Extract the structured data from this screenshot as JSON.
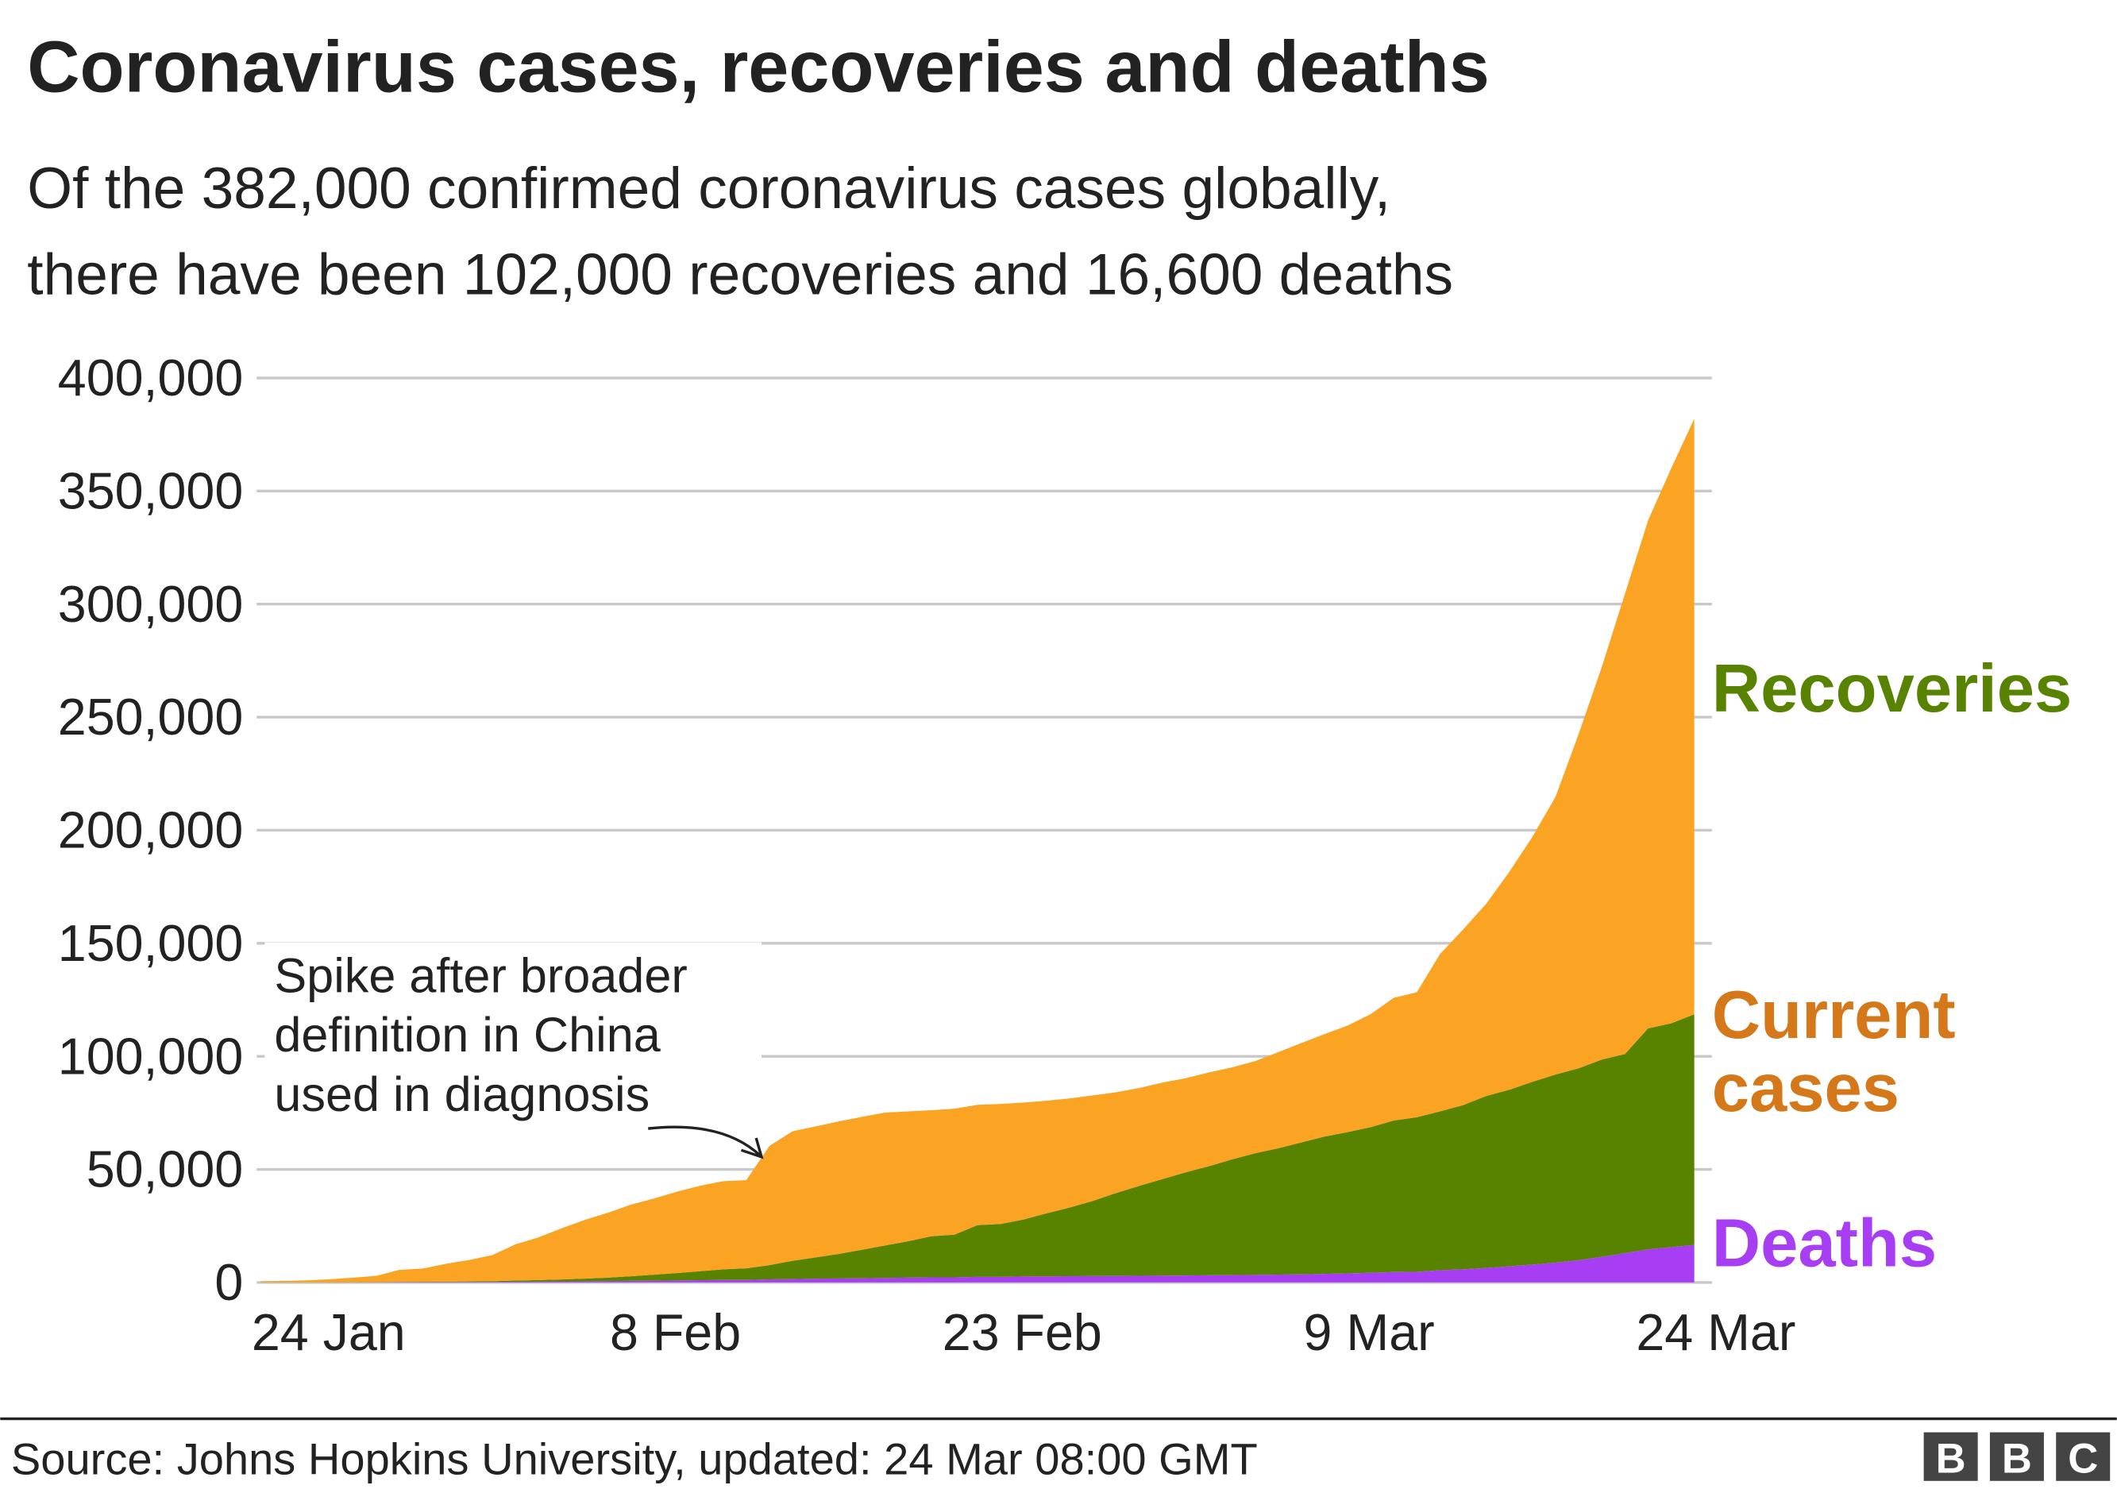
{
  "chart_data": {
    "type": "stacked_area",
    "title": "Coronavirus cases, recoveries and deaths",
    "subtitle": [
      "Of the 382,000 confirmed coronavirus cases globally,",
      "there have been 102,000 recoveries and 16,600 deaths"
    ],
    "x": [
      "22 Jan",
      "23 Jan",
      "24 Jan",
      "25 Jan",
      "26 Jan",
      "27 Jan",
      "28 Jan",
      "29 Jan",
      "30 Jan",
      "31 Jan",
      "1 Feb",
      "2 Feb",
      "3 Feb",
      "4 Feb",
      "5 Feb",
      "6 Feb",
      "7 Feb",
      "8 Feb",
      "9 Feb",
      "10 Feb",
      "11 Feb",
      "12 Feb",
      "13 Feb",
      "14 Feb",
      "15 Feb",
      "16 Feb",
      "17 Feb",
      "18 Feb",
      "19 Feb",
      "20 Feb",
      "21 Feb",
      "22 Feb",
      "23 Feb",
      "24 Feb",
      "25 Feb",
      "26 Feb",
      "27 Feb",
      "28 Feb",
      "29 Feb",
      "1 Mar",
      "2 Mar",
      "3 Mar",
      "4 Mar",
      "5 Mar",
      "6 Mar",
      "7 Mar",
      "8 Mar",
      "9 Mar",
      "10 Mar",
      "11 Mar",
      "12 Mar",
      "13 Mar",
      "14 Mar",
      "15 Mar",
      "16 Mar",
      "17 Mar",
      "18 Mar",
      "19 Mar",
      "20 Mar",
      "21 Mar",
      "22 Mar",
      "23 Mar",
      "24 Mar"
    ],
    "series": [
      {
        "name": "Deaths",
        "color": "#a83ef3",
        "label_color": "#a83ef3",
        "values": [
          17,
          18,
          26,
          42,
          56,
          82,
          131,
          133,
          171,
          213,
          259,
          362,
          426,
          492,
          564,
          634,
          719,
          806,
          906,
          1013,
          1113,
          1118,
          1371,
          1523,
          1666,
          1770,
          1868,
          2007,
          2122,
          2247,
          2251,
          2458,
          2469,
          2629,
          2708,
          2770,
          2814,
          2872,
          2941,
          2996,
          3085,
          3160,
          3254,
          3348,
          3460,
          3558,
          3802,
          3988,
          4262,
          4615,
          4720,
          5404,
          5819,
          6440,
          7126,
          7905,
          8733,
          9867,
          11299,
          12973,
          14651,
          15600,
          16600
        ]
      },
      {
        "name": "Recoveries",
        "color": "#588300",
        "label_color": "#588300",
        "values": [
          28,
          30,
          36,
          39,
          52,
          61,
          107,
          126,
          143,
          222,
          284,
          472,
          623,
          852,
          1124,
          1487,
          2011,
          2616,
          3244,
          3946,
          4683,
          5150,
          6295,
          8058,
          9395,
          10865,
          12583,
          14352,
          16121,
          18177,
          18890,
          22886,
          23394,
          25227,
          27905,
          30384,
          33277,
          36711,
          39782,
          42716,
          45602,
          48228,
          51170,
          53796,
          55865,
          58358,
          60694,
          62494,
          64404,
          67003,
          68324,
          70251,
          72624,
          76034,
          78088,
          80840,
          83207,
          84854,
          87256,
          88000,
          97704,
          99000,
          102000
        ]
      },
      {
        "name": "Current cases",
        "color": "#fba322",
        "label_color": "#d4781a",
        "values": [
          510,
          606,
          879,
          1353,
          2010,
          2784,
          5340,
          5907,
          7920,
          9492,
          11495,
          15953,
          18832,
          22548,
          25947,
          28673,
          31661,
          33698,
          36000,
          37803,
          39006,
          38953,
          52702,
          57304,
          57969,
          58589,
          58807,
          58777,
          57396,
          55773,
          55678,
          53228,
          53095,
          51705,
          49793,
          48234,
          46655,
          44529,
          43288,
          42657,
          41619,
          41452,
          40696,
          40742,
          42476,
          43931,
          45325,
          47108,
          49954,
          54257,
          55308,
          69550,
          77658,
          84980,
          96360,
          108357,
          122881,
          147849,
          173653,
          203534,
          224598,
          245400,
          263400
        ]
      }
    ],
    "ylim": [
      0,
      400000
    ],
    "yticks": [
      0,
      {
        "value": 50000,
        "label": "50,000"
      },
      {
        "value": 100000,
        "label": "100,000"
      },
      {
        "value": 150000,
        "label": "150,000"
      },
      {
        "value": 200000,
        "label": "200,000"
      },
      {
        "value": 250000,
        "label": "250,000"
      },
      {
        "value": 300000,
        "label": "300,000"
      },
      {
        "value": 350000,
        "label": "350,000"
      },
      {
        "value": 400000,
        "label": "400,000"
      }
    ],
    "xticks": [
      "24 Jan",
      "8 Feb",
      "23 Feb",
      "9 Mar",
      "24 Mar"
    ],
    "grid": true,
    "annotation": [
      "Spike after broader",
      "definition in China",
      "used in diagnosis"
    ],
    "source": "Source: Johns Hopkins University, updated: 24 Mar 08:00 GMT",
    "logo": [
      "B",
      "B",
      "C"
    ]
  }
}
